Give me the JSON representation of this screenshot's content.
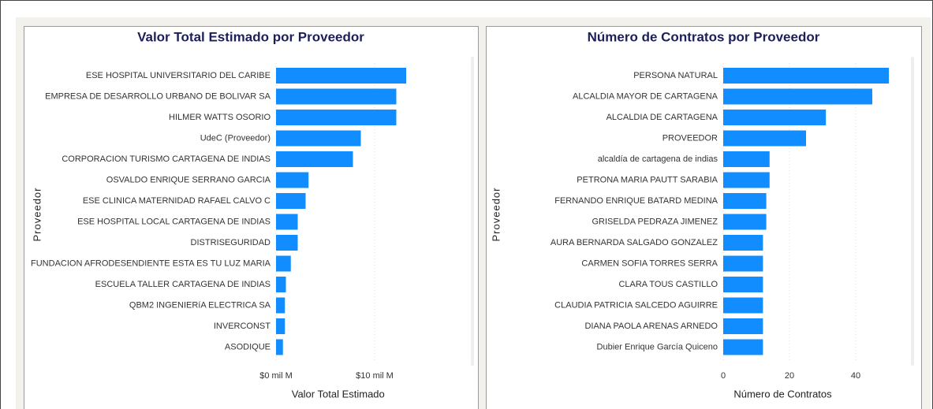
{
  "chart_data": [
    {
      "type": "bar",
      "orientation": "horizontal",
      "title": "Valor Total Estimado por Proveedor",
      "x_label": "Valor Total Estimado",
      "y_label": "Proveedor",
      "color": "#118dff",
      "categories": [
        "ESE HOSPITAL UNIVERSITARIO DEL CARIBE",
        "EMPRESA DE DESARROLLO URBANO DE BOLIVAR SA",
        "HILMER WATTS OSORIO",
        "UdeC (Proveedor)",
        "CORPORACION TURISMO CARTAGENA DE INDIAS",
        "OSVALDO ENRIQUE SERRANO GARCIA",
        "ESE CLINICA MATERNIDAD RAFAEL CALVO C",
        "ESE HOSPITAL LOCAL CARTAGENA DE INDIAS",
        "DISTRISEGURIDAD",
        "FUNDACION AFRODESENDIENTE ESTA ES TU LUZ MARIA",
        "ESCUELA TALLER CARTAGENA DE INDIAS",
        "QBM2 INGENIERíA ELECTRICA SA",
        "INVERCONST",
        "ASODIQUE"
      ],
      "values": [
        13.2,
        12.2,
        12.2,
        8.6,
        7.8,
        3.3,
        3.0,
        2.2,
        2.2,
        1.5,
        1.0,
        0.9,
        0.9,
        0.7
      ],
      "xlim": [
        0,
        19
      ],
      "xticks": [
        {
          "value": 0,
          "label": "$0 mil M"
        },
        {
          "value": 10,
          "label": "$10 mil M"
        }
      ],
      "grid": true
    },
    {
      "type": "bar",
      "orientation": "horizontal",
      "title": "Número de Contratos por Proveedor",
      "x_label": "Número de Contratos",
      "y_label": "Proveedor",
      "color": "#118dff",
      "categories": [
        "PERSONA NATURAL",
        "ALCALDIA MAYOR DE CARTAGENA",
        "ALCALDIA DE CARTAGENA",
        "PROVEEDOR",
        "alcaldía de cartagena de indias",
        "PETRONA MARIA PAUTT SARABIA",
        "FERNANDO ENRIQUE BATARD MEDINA",
        "GRISELDA PEDRAZA JIMENEZ",
        "AURA BERNARDA SALGADO GONZALEZ",
        "CARMEN SOFIA TORRES SERRA",
        "CLARA TOUS CASTILLO",
        "CLAUDIA PATRICIA SALCEDO AGUIRRE",
        "DIANA PAOLA ARENAS ARNEDO",
        "Dubier Enrique García Quiceno"
      ],
      "values": [
        50,
        45,
        31,
        25,
        14,
        14,
        13,
        13,
        12,
        12,
        12,
        12,
        12,
        12
      ],
      "xlim": [
        0,
        55
      ],
      "xticks": [
        0,
        20,
        40
      ],
      "grid": true
    }
  ]
}
